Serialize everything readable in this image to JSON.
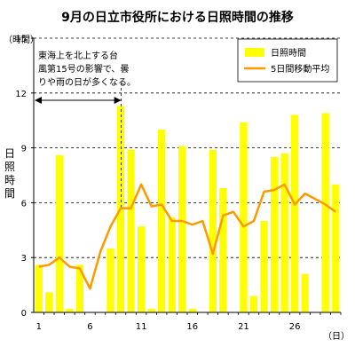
{
  "chart_data": {
    "type": "bar",
    "title": "9月の日立市役所における日照時間の推移",
    "ylabel_unit": "（時間）",
    "ylabel": "日照時間",
    "xlabel_unit": "（日）",
    "ylim": [
      0,
      15
    ],
    "yticks": [
      0,
      3,
      6,
      9,
      12,
      15
    ],
    "xticks": [
      1,
      6,
      11,
      16,
      21,
      26
    ],
    "x": [
      1,
      2,
      3,
      4,
      5,
      6,
      7,
      8,
      9,
      10,
      11,
      12,
      13,
      14,
      15,
      16,
      17,
      18,
      19,
      20,
      21,
      22,
      23,
      24,
      25,
      26,
      27,
      28,
      29,
      30
    ],
    "series": [
      {
        "name": "日照時間",
        "type": "bar",
        "color": "#ffff00",
        "values": [
          2.6,
          1.1,
          8.6,
          0.2,
          2.6,
          0.0,
          0.0,
          3.5,
          11.3,
          8.9,
          4.7,
          0.2,
          10.0,
          5.2,
          9.1,
          0.2,
          0.0,
          8.9,
          6.8,
          0.0,
          10.4,
          0.9,
          5.0,
          8.5,
          8.7,
          10.8,
          2.1,
          0.0,
          10.9,
          7.0
        ]
      },
      {
        "name": "5日間移動平均",
        "type": "line",
        "color": "#ff9900",
        "values": [
          2.5,
          2.6,
          3.0,
          2.5,
          2.4,
          1.3,
          3.3,
          4.7,
          5.7,
          5.7,
          7.0,
          5.8,
          5.9,
          5.0,
          5.0,
          4.8,
          5.0,
          3.2,
          5.3,
          5.5,
          4.7,
          5.0,
          6.6,
          6.7,
          7.0,
          5.9,
          6.5,
          6.2,
          5.9,
          5.5
        ]
      }
    ],
    "annotation": {
      "lines": [
        "東海上を北上する台",
        "風第15号の影響で、曇",
        "りや雨の日が多くなる。"
      ],
      "start_day": 1,
      "end_day": 8,
      "level": 11.6
    },
    "grid": true,
    "legend_position": "top-right"
  }
}
